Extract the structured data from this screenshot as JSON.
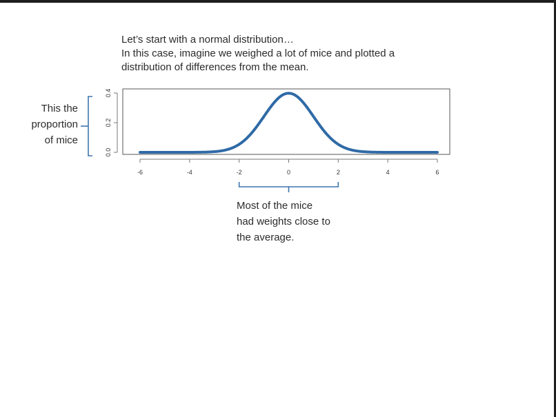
{
  "slide": {
    "intro_lines": [
      "Let’s start with a normal distribution…",
      "In this case, imagine we weighed a lot of mice and plotted a",
      "distribution of differences from the mean."
    ],
    "y_annotation_lines": [
      "This the",
      "proportion",
      "of mice"
    ],
    "x_annotation_lines": [
      "Most of the mice",
      "had weights close to",
      "the average."
    ]
  },
  "colors": {
    "curve": "#2f6aa6",
    "bracket": "#3d74ad",
    "text": "#2b2b2b",
    "frame": "#555555"
  },
  "chart_data": {
    "type": "line",
    "title": "",
    "xlabel": "",
    "ylabel": "",
    "distribution": "normal",
    "mean": 0,
    "sd": 1,
    "xlim": [
      -6,
      6
    ],
    "ylim": [
      0,
      0.4
    ],
    "x_ticks": [
      -6,
      -4,
      -2,
      0,
      2,
      4,
      6
    ],
    "y_ticks": [
      0.0,
      0.2,
      0.4
    ],
    "y_tick_labels": [
      "0.0",
      "0.2",
      "0.4"
    ],
    "annotated_x_range": [
      -2,
      2
    ],
    "grid": false
  }
}
